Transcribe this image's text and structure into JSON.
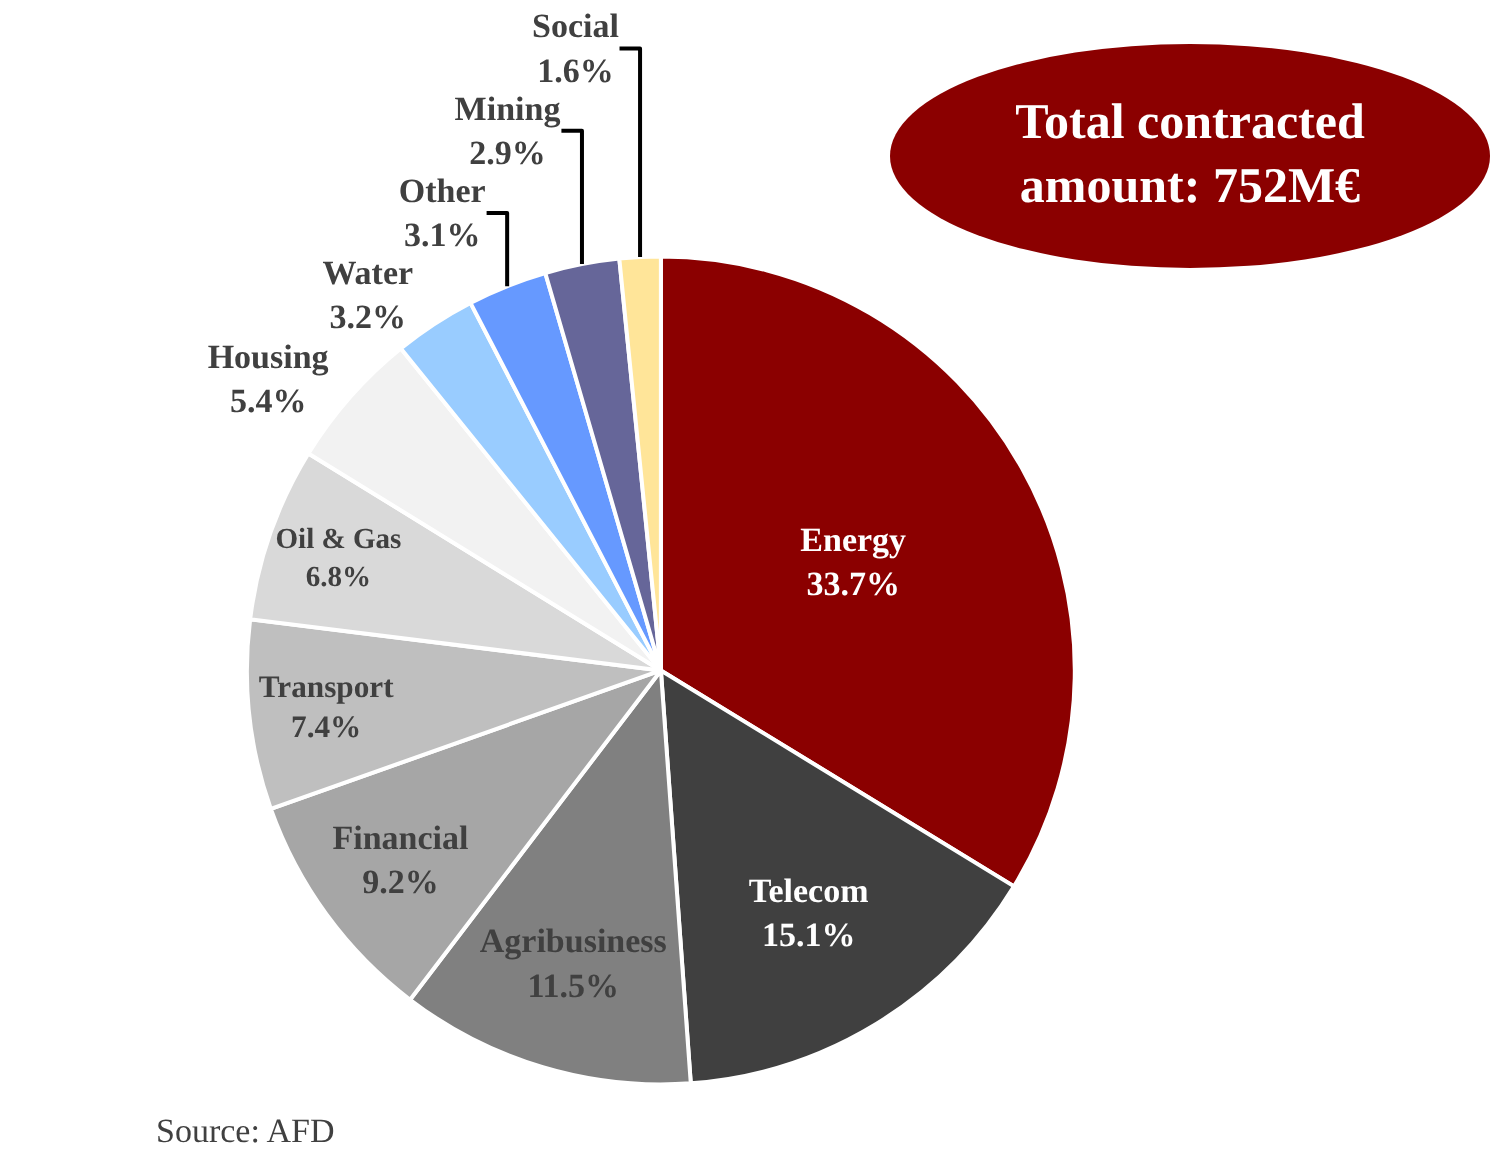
{
  "chart_data": {
    "type": "pie",
    "categories": [
      "Energy",
      "Telecom",
      "Agribusiness",
      "Financial",
      "Transport",
      "Oil & Gas",
      "Housing",
      "Water",
      "Other",
      "Mining",
      "Social"
    ],
    "values": [
      33.7,
      15.1,
      11.5,
      9.2,
      7.4,
      6.8,
      5.4,
      3.2,
      3.1,
      2.9,
      1.6
    ],
    "value_labels": [
      "33.7%",
      "15.1%",
      "11.5%",
      "9.2%",
      "7.4%",
      "6.8%",
      "5.4%",
      "3.2%",
      "3.1%",
      "2.9%",
      "1.6%"
    ],
    "colors": [
      "#8b0000",
      "#404040",
      "#808080",
      "#a6a6a6",
      "#bfbfbf",
      "#d9d9d9",
      "#f2f2f2",
      "#99ccff",
      "#6699ff",
      "#666699",
      "#ffe599"
    ],
    "annotations": [
      "Total contracted amount: 752M€",
      "Source: AFD"
    ]
  }
}
